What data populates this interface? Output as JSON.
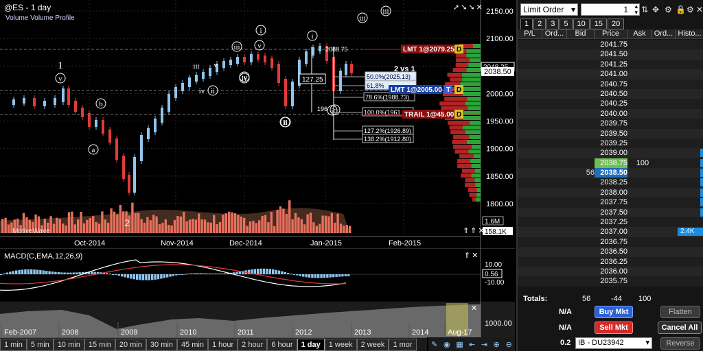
{
  "chart": {
    "title": "@ES - 1 day",
    "subtitle": "Volume  Volume Profile",
    "watermark": "MotiveWave",
    "price_ticks": [
      "2150.00",
      "2100.00",
      "2050.00",
      "2000.00",
      "1950.00",
      "1900.00",
      "1850.00",
      "1800.00"
    ],
    "volume_ticks": [
      "1.6M",
      "158.1K"
    ],
    "date_labels": [
      "Oct-2014",
      "Nov-2014",
      "Dec-2014",
      "Jan-2015",
      "Feb-2015"
    ],
    "current_price_label": "2038.50",
    "current_price_label2": "2048.25",
    "orders": [
      {
        "label": "LMT 1@2079.25",
        "badge": "D"
      },
      {
        "label": "LMT 1@2005.00",
        "badge": "D",
        "badge2": "T"
      },
      {
        "label": "TRAIL 1@45.00",
        "badge": "D"
      }
    ],
    "fib_labels": [
      "50.0%(2025.13)",
      "61.8%",
      "78.6%(1988.73)",
      "100.0%(1961",
      "127.2%(1926.89)",
      "138.2%(1912.80)"
    ],
    "measure_labels": [
      "127.25",
      "2088.75",
      "196"
    ],
    "wave_labels": [
      "1",
      "v",
      "b",
      "a",
      "2",
      "iii",
      "v",
      "i",
      "ii",
      "iv",
      "ii",
      "iii",
      "v",
      "i",
      "iv",
      "i",
      "ii",
      "iii",
      "iii",
      "iv",
      "c"
    ],
    "ratio_label": "2 vs 1",
    "macd": {
      "label": "MACD(C,EMA,12,26,9)",
      "ticks": [
        "10.00",
        "0.56",
        "-10.00"
      ]
    },
    "navigator": {
      "years": [
        "Feb-2007",
        "2008",
        "2009",
        "2010",
        "2011",
        "2012",
        "2013",
        "2014",
        "Aug-17"
      ],
      "tick": "1000.00"
    },
    "timeframes": [
      "1 min",
      "5 min",
      "10 min",
      "15 min",
      "20 min",
      "30 min",
      "45 min",
      "1 hour",
      "2 hour",
      "6 hour",
      "1 day",
      "1 week",
      "2 week",
      "1 mor"
    ],
    "active_timeframe": "1 day",
    "colors": {
      "up": "#8fc5ee",
      "down": "#e23a3a",
      "volume": "#e8705e",
      "macd_hist": "#8fc5ee"
    }
  },
  "dom": {
    "order_type": "Limit Order",
    "quantity": "1",
    "tabs": [
      "1",
      "2",
      "3",
      "5",
      "10",
      "15",
      "20"
    ],
    "columns": [
      "P/L",
      "Ord...",
      "Bid",
      "Price",
      "Ask",
      "Ord...",
      "Histo..."
    ],
    "rows": [
      {
        "price": "2041.75"
      },
      {
        "price": "2041.50"
      },
      {
        "price": "2041.25"
      },
      {
        "price": "2041.00"
      },
      {
        "price": "2040.75"
      },
      {
        "price": "2040.50"
      },
      {
        "price": "2040.25"
      },
      {
        "price": "2040.00"
      },
      {
        "price": "2039.75"
      },
      {
        "price": "2039.50"
      },
      {
        "price": "2039.25"
      },
      {
        "price": "2039.00",
        "histo": 0.06
      },
      {
        "price": "2038.75",
        "ask": "100",
        "last": true,
        "histo": 0.04
      },
      {
        "price": "2038.50",
        "bid": "56",
        "bidrow": true,
        "histo": 0.08
      },
      {
        "price": "2038.25",
        "histo": 0.06
      },
      {
        "price": "2038.00",
        "histo": 0.08
      },
      {
        "price": "2037.75",
        "histo": 0.07
      },
      {
        "price": "2037.50",
        "histo": 0.03
      },
      {
        "price": "2037.25"
      },
      {
        "price": "2037.00",
        "histo": 0.7,
        "histo_label": "2.4K"
      },
      {
        "price": "2036.75"
      },
      {
        "price": "2036.50"
      },
      {
        "price": "2036.25"
      },
      {
        "price": "2036.00"
      },
      {
        "price": "2035.75"
      }
    ],
    "totals": {
      "label": "Totals:",
      "bid": "56",
      "ask": "-44",
      "extra": "100"
    },
    "na1": "N/A",
    "na2": "N/A",
    "buy_mkt": "Buy Mkt",
    "sell_mkt": "Sell Mkt",
    "flatten": "Flatten",
    "cancel_all": "Cancel All",
    "reverse": "Reverse",
    "size_value": "0.2",
    "account": "IB - DU23942"
  }
}
